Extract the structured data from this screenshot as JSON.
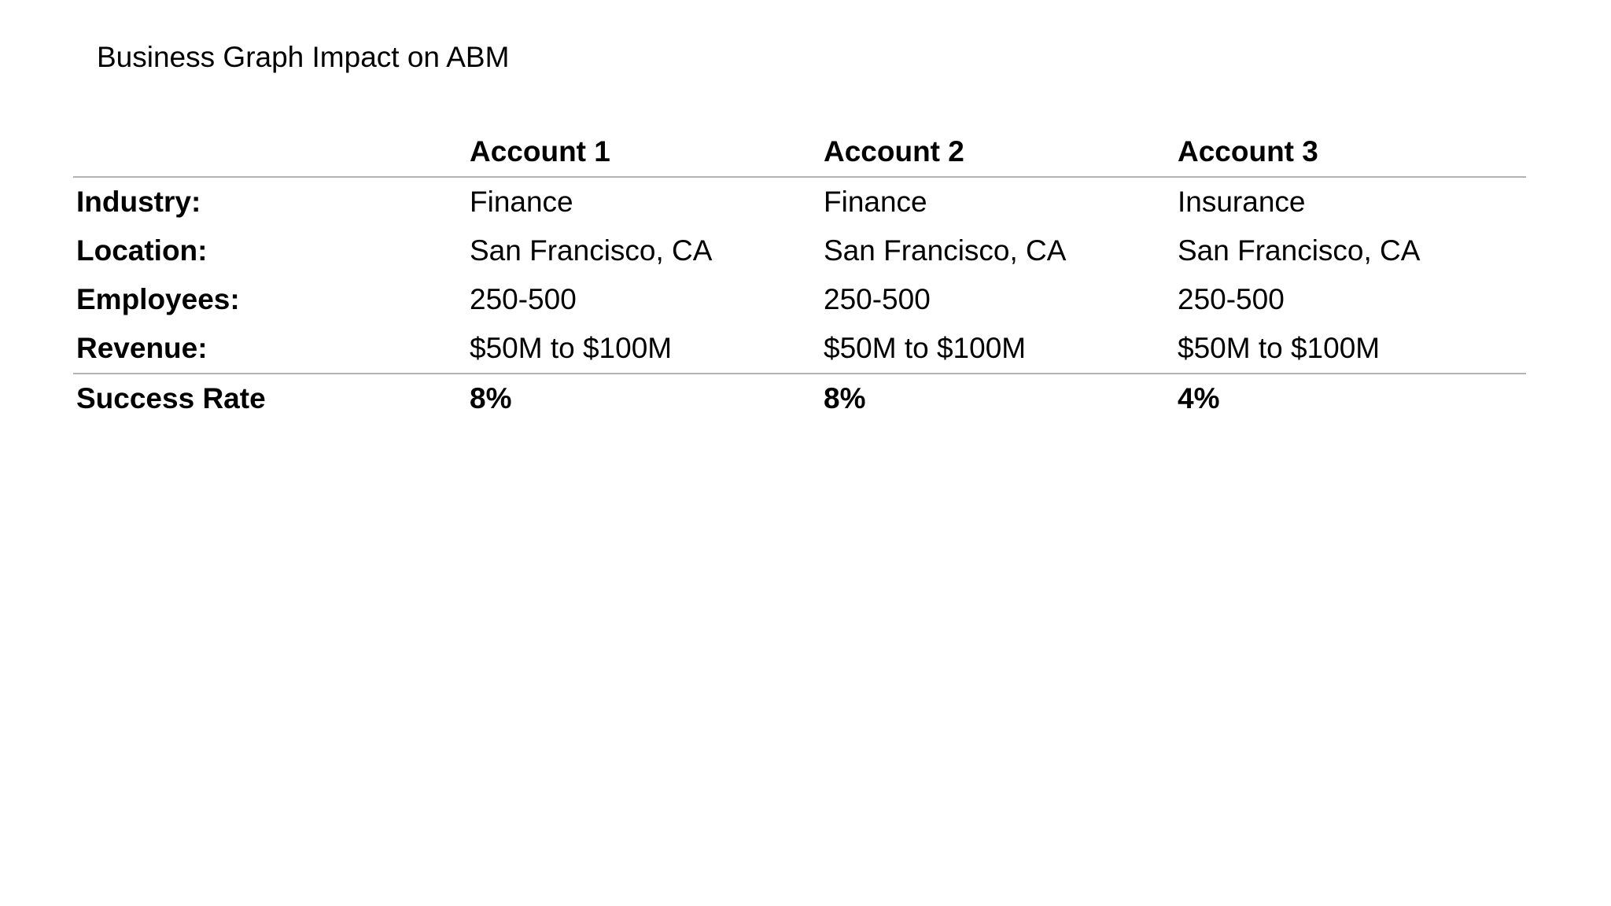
{
  "title": "Business Graph Impact on ABM",
  "table": {
    "columns": [
      "",
      "Account 1",
      "Account 2",
      "Account 3"
    ],
    "rows": [
      {
        "label": "Industry:",
        "values": [
          "Finance",
          "Finance",
          "Insurance"
        ]
      },
      {
        "label": "Location:",
        "values": [
          "San Francisco, CA",
          "San Francisco, CA",
          "San Francisco, CA"
        ]
      },
      {
        "label": "Employees:",
        "values": [
          "250-500",
          "250-500",
          "250-500"
        ]
      },
      {
        "label": "Revenue:",
        "values": [
          "$50M to $100M",
          "$50M to $100M",
          "$50M to $100M"
        ]
      }
    ],
    "footer": {
      "label": "Success Rate",
      "values": [
        "8%",
        "8%",
        "4%"
      ]
    }
  },
  "colors": {
    "background": "#ffffff",
    "text": "#000000",
    "divider": "#b3b3b3"
  }
}
